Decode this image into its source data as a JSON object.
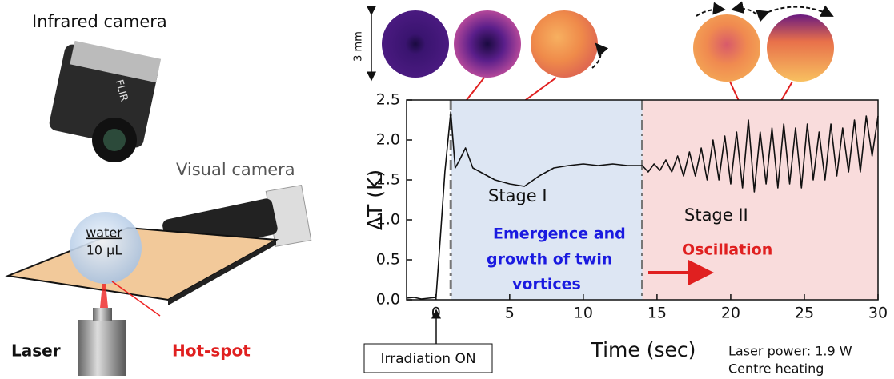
{
  "chart_data": {
    "type": "line",
    "x_label": "Time (sec)",
    "y_label": "ΔT (K)",
    "xlim": [
      -2,
      30
    ],
    "ylim": [
      0,
      2.5
    ],
    "xticks": [
      0,
      5,
      10,
      15,
      20,
      25,
      30
    ],
    "yticks": [
      {
        "value": 0,
        "label": "0.0"
      },
      0.5,
      {
        "value": 1,
        "label": "1.0"
      },
      1.5,
      {
        "value": 2,
        "label": "2.0"
      },
      2.5
    ],
    "regions": [
      {
        "xlim": [
          1,
          14
        ],
        "color": "#dde6f3"
      },
      {
        "xlim": [
          14,
          30
        ],
        "color": "#f9dcdc"
      }
    ],
    "x": [
      -2,
      -1.5,
      -1,
      -0.5,
      0,
      0.3,
      0.6,
      1.0,
      1.3,
      1.6,
      2.0,
      2.5,
      3,
      3.5,
      4,
      5,
      6,
      7,
      8,
      9,
      10,
      11,
      12,
      13,
      14,
      14.4,
      14.8,
      15.2,
      15.6,
      16,
      16.4,
      16.8,
      17.2,
      17.6,
      18,
      18.4,
      18.8,
      19.2,
      19.6,
      20,
      20.4,
      20.8,
      21.2,
      21.6,
      22,
      22.4,
      22.8,
      23.2,
      23.6,
      24,
      24.4,
      24.8,
      25.2,
      25.6,
      26,
      26.4,
      26.8,
      27.2,
      27.6,
      28,
      28.4,
      28.8,
      29.2,
      29.6,
      30
    ],
    "series": [
      {
        "color": "#111111",
        "values": [
          0.02,
          0.03,
          0.01,
          0.02,
          0.03,
          0.8,
          1.6,
          2.35,
          1.65,
          1.75,
          1.9,
          1.65,
          1.6,
          1.55,
          1.5,
          1.45,
          1.42,
          1.55,
          1.65,
          1.68,
          1.7,
          1.68,
          1.7,
          1.68,
          1.68,
          1.6,
          1.7,
          1.62,
          1.75,
          1.6,
          1.8,
          1.55,
          1.85,
          1.55,
          1.9,
          1.5,
          2.0,
          1.5,
          2.05,
          1.45,
          2.1,
          1.4,
          2.25,
          1.35,
          2.1,
          1.45,
          2.15,
          1.4,
          2.2,
          1.45,
          2.15,
          1.4,
          2.2,
          1.5,
          2.1,
          1.5,
          2.2,
          1.55,
          2.15,
          1.6,
          2.25,
          1.6,
          2.3,
          1.8,
          2.3
        ]
      }
    ],
    "annotations": {
      "stage1": "Stage I",
      "vortices": [
        "Emergence and",
        "growth of twin",
        "vortices"
      ],
      "stage2": "Stage II",
      "oscillation": "Oscillation",
      "irradiation": "Irradiation ON",
      "power": "Laser power: 1.9 W",
      "heating": "Centre heating",
      "scale": "3 mm"
    }
  },
  "illustration": {
    "ir_camera": "Infrared camera",
    "visual_camera": "Visual camera",
    "water": "water",
    "volume": "10 µL",
    "laser": "Laser",
    "hotspot": "Hot-spot",
    "brand": "FLIR"
  }
}
